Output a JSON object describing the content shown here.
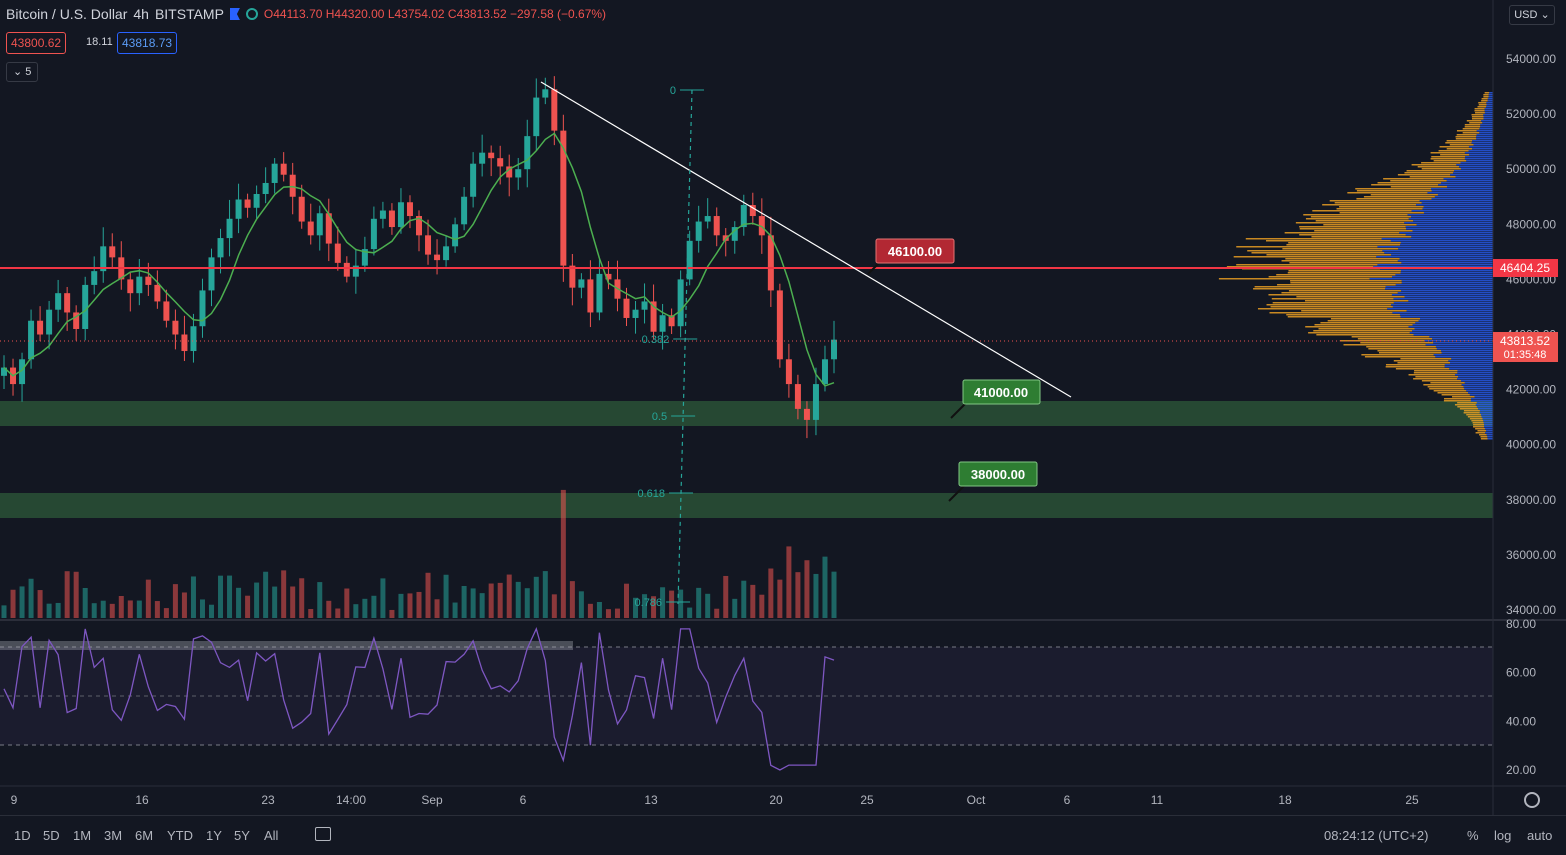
{
  "header": {
    "symbol": "Bitcoin / U.S. Dollar",
    "interval": "4h",
    "exchange": "BITSTAMP",
    "open": "O44113.70",
    "high": "H44320.00",
    "low": "L43754.02",
    "close": "C43813.52",
    "change": "−297.58 (−0.67%)"
  },
  "trade": {
    "sell": "43800.62",
    "spread": "18.11",
    "buy": "43818.73"
  },
  "indicator_toggle": "5",
  "currency": "USD",
  "price_axis": [
    "54000.00",
    "52000.00",
    "50000.00",
    "48000.00",
    "46000.00",
    "44000.00",
    "42000.00",
    "40000.00",
    "38000.00",
    "36000.00",
    "34000.00"
  ],
  "rsi_axis": [
    "80.00",
    "60.00",
    "40.00",
    "20.00"
  ],
  "time_axis": [
    "9",
    "16",
    "23",
    "14:00",
    "Sep",
    "6",
    "13",
    "20",
    "25",
    "Oct",
    "6",
    "11",
    "18",
    "25"
  ],
  "labels": {
    "resistance": "46100.00",
    "support1": "41000.00",
    "support2": "38000.00",
    "red_line_price": "46404.25",
    "last_price": "43813.52",
    "countdown": "01:35:48"
  },
  "fib_levels": [
    "0",
    "0.382",
    "0.5",
    "0.618",
    "0.786"
  ],
  "bottom": {
    "ranges": [
      "1D",
      "5D",
      "1M",
      "3M",
      "6M",
      "YTD",
      "1Y",
      "5Y",
      "All"
    ],
    "clock": "08:24:12 (UTC+2)",
    "percent": "%",
    "log": "log",
    "auto": "auto"
  },
  "colors": {
    "bg": "#131722",
    "up": "#26a69a",
    "down": "#ef5350",
    "ma": "#4caf50",
    "rsi": "#7e57c2",
    "red_line": "#f23645",
    "zone": "#2e5a3a"
  },
  "chart_data": {
    "type": "candlestick",
    "series": [
      {
        "name": "price",
        "x_start": "Aug 7",
        "points": [
          42800,
          42200,
          43100,
          44500,
          44000,
          44900,
          45500,
          44800,
          44200,
          45800,
          46300,
          47200,
          46800,
          46000,
          45500,
          46100,
          45800,
          45200,
          44500,
          44000,
          43400,
          44300,
          45600,
          46800,
          47500,
          48200,
          48900,
          48600,
          49100,
          49500,
          50200,
          49800,
          49000,
          48100,
          47600,
          48400,
          47300,
          46600,
          46100,
          46500,
          47100,
          48200,
          48500,
          47900,
          48800,
          48300,
          47600,
          46900,
          46700,
          47200,
          48000,
          49000,
          50200,
          50600,
          50400,
          50100,
          49700,
          50000,
          51200,
          52600,
          52900,
          51400,
          46500,
          45700,
          46000,
          44800,
          46200,
          46000,
          45300,
          44600,
          44900,
          45200,
          44100,
          44700,
          44300,
          46000,
          47400,
          48100,
          48300,
          47600,
          47400,
          47900,
          48700,
          48300,
          47600,
          45600,
          43100,
          42200,
          41300,
          40900,
          42200,
          43100,
          43813
        ]
      }
    ],
    "moving_average": "20-period",
    "rsi_range": [
      20,
      80
    ],
    "ylim": [
      34000,
      55000
    ]
  }
}
